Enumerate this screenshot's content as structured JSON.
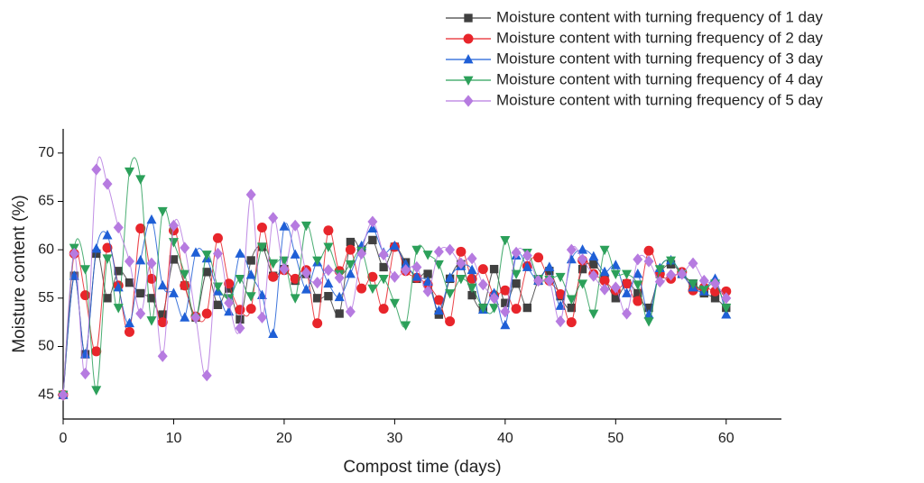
{
  "chart_data": {
    "type": "line",
    "x_label": "Compost time (days)",
    "y_label": "Moisture content (%)",
    "x": [
      0,
      1,
      2,
      3,
      4,
      5,
      6,
      7,
      8,
      9,
      10,
      11,
      12,
      13,
      14,
      15,
      16,
      17,
      18,
      19,
      20,
      21,
      22,
      23,
      24,
      25,
      26,
      27,
      28,
      29,
      30,
      31,
      32,
      33,
      34,
      35,
      36,
      37,
      38,
      39,
      40,
      41,
      42,
      43,
      44,
      45,
      46,
      47,
      48,
      49,
      50,
      51,
      52,
      53,
      54,
      55,
      56,
      57,
      58,
      59,
      60
    ],
    "series": [
      {
        "name": "Moisture content with turning frequency of 1 day",
        "color": "#404040",
        "marker": "square",
        "values": [
          45,
          57.3,
          49.2,
          59.6,
          55,
          57.8,
          56.6,
          55.5,
          55,
          53.3,
          59,
          56.3,
          53,
          57.7,
          54.3,
          56,
          52.8,
          58.9,
          60.3,
          57.3,
          58,
          56.8,
          57.5,
          55,
          55.2,
          53.4,
          60.8,
          60,
          61,
          58.2,
          60.3,
          58.7,
          57,
          57.5,
          53.3,
          57,
          58.5,
          55.3,
          54,
          58,
          54.5,
          56.5,
          54,
          56.8,
          57.8,
          55.2,
          54,
          58,
          58.5,
          57,
          55,
          56.5,
          55.5,
          54,
          57.5,
          58.5,
          57.5,
          56.5,
          55.5,
          55,
          54
        ]
      },
      {
        "name": "Moisture content with turning frequency of 2 day",
        "color": "#e8252b",
        "marker": "circle",
        "values": [
          45,
          59.6,
          55.3,
          49.5,
          60.2,
          56.3,
          51.5,
          62.2,
          57,
          52.5,
          62,
          56.3,
          53.1,
          53.4,
          61.2,
          56.5,
          53.8,
          53.9,
          62.3,
          57.2,
          57.9,
          57,
          57.9,
          52.4,
          62,
          57.8,
          60,
          56,
          57.2,
          53.9,
          60.3,
          57.8,
          57.1,
          56.4,
          54.8,
          52.6,
          59.8,
          57,
          58,
          55.3,
          55.8,
          53.9,
          58.3,
          59.2,
          56.8,
          55.4,
          52.5,
          58.9,
          57.5,
          56.8,
          55.8,
          56.5,
          54.7,
          59.9,
          57.5,
          57,
          57.7,
          55.8,
          56.1,
          55.7,
          55.7
        ]
      },
      {
        "name": "Moisture content with turning frequency of 3 day",
        "color": "#1f5fd6",
        "marker": "triangle",
        "values": [
          45,
          57.3,
          49.2,
          60.1,
          61.5,
          56.1,
          52.4,
          58.9,
          63.1,
          56.3,
          55.5,
          53,
          59.7,
          59.1,
          55.7,
          53.6,
          59.6,
          57.4,
          55.3,
          51.3,
          62.4,
          59.5,
          55.9,
          58.7,
          56.5,
          55.1,
          57.5,
          60.4,
          62.2,
          59.7,
          60.4,
          58.5,
          57.2,
          56.7,
          53.7,
          57.1,
          58.3,
          57.9,
          53.8,
          55.5,
          52.2,
          59.4,
          58.2,
          56.8,
          58.2,
          54.2,
          59,
          60,
          59.3,
          57.7,
          58.4,
          55.5,
          57.5,
          53.3,
          58.1,
          58.9,
          57.5,
          56.1,
          55.7,
          57,
          53.3
        ]
      },
      {
        "name": "Moisture content with turning frequency of 4 day",
        "color": "#2ca05a",
        "marker": "triangle-down",
        "values": [
          45,
          60.2,
          58,
          45.5,
          59.1,
          54,
          68.1,
          67.3,
          52.7,
          64,
          60.8,
          57.5,
          52.9,
          59.5,
          56.2,
          55,
          57,
          55.2,
          60.3,
          58.6,
          58.9,
          55,
          62.5,
          58.9,
          60.3,
          57.5,
          58.5,
          59.9,
          56,
          57,
          54.5,
          52.2,
          60,
          59.5,
          58.5,
          55.5,
          57,
          56.1,
          54,
          54,
          61,
          57.5,
          59.7,
          57,
          56.9,
          57.2,
          54.9,
          56.5,
          53.4,
          60,
          57.5,
          57.5,
          56.4,
          52.6,
          58,
          58.9,
          57.5,
          56.5,
          55.9,
          56.5,
          54
        ]
      },
      {
        "name": "Moisture content with turning frequency of 5 day",
        "color": "#b67be0",
        "marker": "diamond",
        "values": [
          45,
          59.6,
          47.2,
          68.3,
          66.8,
          62.3,
          58.8,
          53.4,
          58.6,
          49,
          62.5,
          60.2,
          53,
          47,
          59.6,
          54.5,
          51.9,
          65.7,
          53,
          63.3,
          58,
          62.5,
          57.6,
          56.6,
          57.9,
          57.1,
          53.6,
          59.6,
          62.9,
          59.5,
          57.2,
          57.9,
          58.2,
          55.7,
          59.8,
          60,
          58.6,
          59.1,
          56.4,
          55,
          53.6,
          59.7,
          59.4,
          56.8,
          56.8,
          52.6,
          60,
          59,
          57.3,
          55.9,
          56.1,
          53.4,
          59,
          58.8,
          56.7,
          57.4,
          57.5,
          58.6,
          56.8,
          56.5,
          55
        ]
      }
    ],
    "xlim": [
      0,
      65
    ],
    "xticks": [
      0,
      10,
      20,
      30,
      40,
      50,
      60
    ],
    "ylim": [
      42.5,
      72.5
    ],
    "yticks": [
      45,
      50,
      55,
      60,
      65,
      70
    ],
    "legend_position": "top-right"
  }
}
